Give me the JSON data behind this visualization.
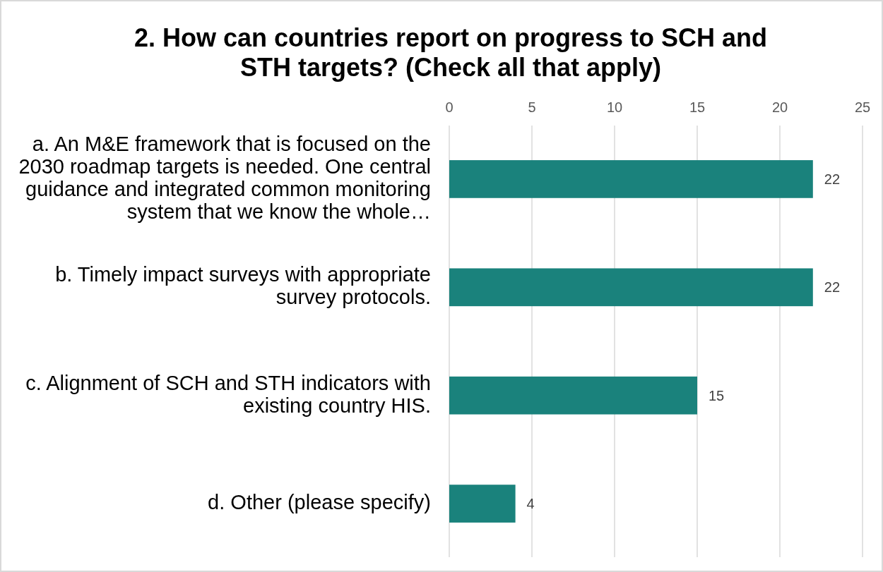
{
  "chart_data": {
    "type": "bar",
    "orientation": "horizontal",
    "title": "2. How can countries report on progress to SCH and STH targets? (Check all that apply)",
    "categories": [
      "a. An M&E framework that is focused on the 2030 roadmap targets is needed. One central guidance and integrated common monitoring system that we know the whole…",
      "b. Timely impact surveys with appropriate survey protocols.",
      "c. Alignment of SCH and STH indicators with existing country HIS.",
      "d. Other (please specify)"
    ],
    "values": [
      22,
      22,
      15,
      4
    ],
    "color": "#1a827c",
    "xlim": [
      0,
      25
    ],
    "xticks": [
      0,
      5,
      10,
      15,
      20,
      25
    ],
    "grid": "x",
    "data_labels": true
  }
}
